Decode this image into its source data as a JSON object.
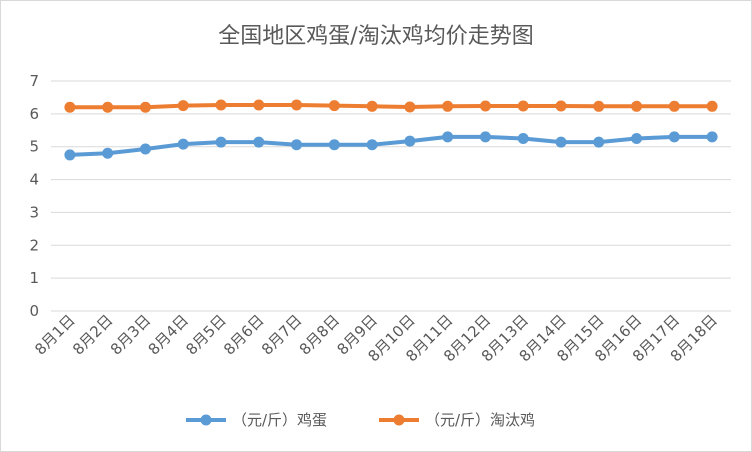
{
  "chart_data": {
    "type": "line",
    "title": "全国地区鸡蛋/淘汰鸡均价走势图",
    "xlabel": "",
    "ylabel": "",
    "categories": [
      "8月1日",
      "8月2日",
      "8月3日",
      "8月4日",
      "8月5日",
      "8月6日",
      "8月7日",
      "8月8日",
      "8月9日",
      "8月10日",
      "8月11日",
      "8月12日",
      "8月13日",
      "8月14日",
      "8月15日",
      "8月16日",
      "8月17日",
      "8月18日"
    ],
    "ylim": [
      0,
      7
    ],
    "yticks": [
      "0",
      "1",
      "2",
      "3",
      "4",
      "5",
      "6",
      "7"
    ],
    "grid": true,
    "legend_position": "bottom",
    "series": [
      {
        "name": "（元/斤）鸡蛋",
        "color": "#5B9BD5",
        "values": [
          4.75,
          4.8,
          4.93,
          5.08,
          5.14,
          5.14,
          5.06,
          5.06,
          5.06,
          5.17,
          5.3,
          5.3,
          5.25,
          5.14,
          5.14,
          5.25,
          5.3,
          5.3
        ]
      },
      {
        "name": "（元/斤）淘汰鸡",
        "color": "#ED7D31",
        "values": [
          6.2,
          6.2,
          6.2,
          6.25,
          6.27,
          6.27,
          6.27,
          6.25,
          6.23,
          6.21,
          6.23,
          6.24,
          6.24,
          6.24,
          6.23,
          6.23,
          6.23,
          6.23
        ]
      }
    ]
  }
}
